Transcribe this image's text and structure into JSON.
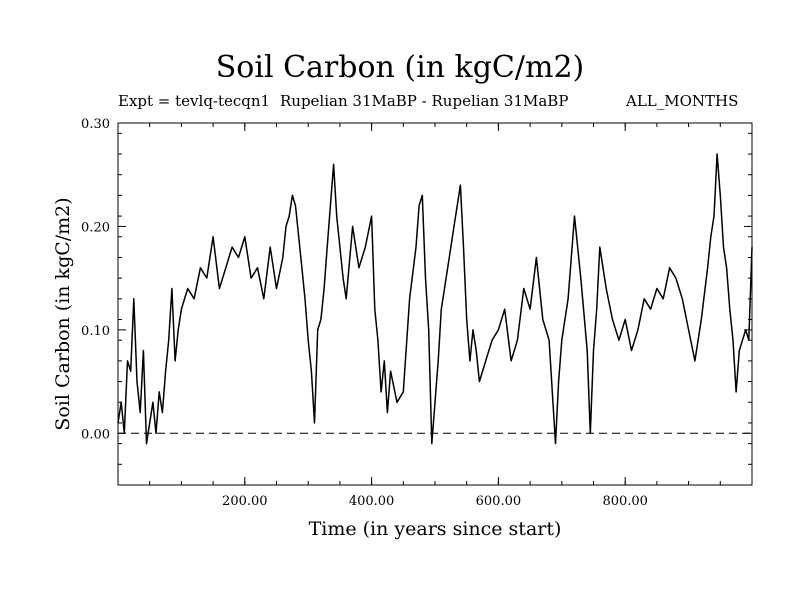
{
  "title": "Soil Carbon (in kgC/m2)",
  "expt_label": "Expt = tevlq-tecqn1",
  "period_label": "Rupelian  31MaBP - Rupelian  31MaBP",
  "months_label": "ALL_MONTHS",
  "chart_data": {
    "type": "line",
    "title": "Soil Carbon (in kgC/m2)",
    "xlabel": "Time (in years since start)",
    "ylabel": "Soil Carbon (in kgC/m2)",
    "xlim": [
      0,
      1000
    ],
    "ylim": [
      -0.05,
      0.3
    ],
    "x_ticks": [
      200,
      400,
      600,
      800
    ],
    "x_tick_labels": [
      "200.00",
      "400.00",
      "600.00",
      "800.00"
    ],
    "y_ticks": [
      0.0,
      0.1,
      0.2,
      0.3
    ],
    "y_tick_labels": [
      "0.00",
      "0.10",
      "0.20",
      "0.30"
    ],
    "reference_line": {
      "y": 0.0,
      "style": "dashed"
    },
    "series": [
      {
        "name": "Soil Carbon",
        "x": [
          0,
          5,
          10,
          15,
          20,
          25,
          30,
          35,
          40,
          45,
          50,
          55,
          60,
          65,
          70,
          75,
          80,
          85,
          90,
          95,
          100,
          110,
          120,
          130,
          140,
          150,
          160,
          170,
          180,
          190,
          200,
          210,
          220,
          230,
          240,
          250,
          260,
          265,
          270,
          275,
          280,
          285,
          290,
          295,
          300,
          305,
          310,
          315,
          320,
          325,
          330,
          335,
          340,
          345,
          350,
          355,
          360,
          370,
          380,
          390,
          400,
          405,
          410,
          415,
          420,
          425,
          430,
          440,
          450,
          460,
          470,
          475,
          480,
          485,
          490,
          495,
          500,
          505,
          510,
          520,
          530,
          540,
          545,
          550,
          555,
          560,
          565,
          570,
          580,
          590,
          600,
          610,
          620,
          630,
          640,
          650,
          660,
          670,
          680,
          685,
          690,
          695,
          700,
          710,
          720,
          730,
          740,
          745,
          750,
          755,
          760,
          770,
          780,
          790,
          800,
          810,
          820,
          830,
          840,
          850,
          860,
          870,
          880,
          890,
          900,
          910,
          920,
          930,
          935,
          940,
          945,
          950,
          955,
          960,
          965,
          970,
          975,
          980,
          985,
          990,
          995,
          1000
        ],
        "values": [
          0.01,
          0.03,
          0.0,
          0.07,
          0.06,
          0.13,
          0.05,
          0.02,
          0.08,
          -0.01,
          0.01,
          0.03,
          0.0,
          0.04,
          0.02,
          0.06,
          0.09,
          0.14,
          0.07,
          0.1,
          0.12,
          0.14,
          0.13,
          0.16,
          0.15,
          0.19,
          0.14,
          0.16,
          0.18,
          0.17,
          0.19,
          0.15,
          0.16,
          0.13,
          0.18,
          0.14,
          0.17,
          0.2,
          0.21,
          0.23,
          0.22,
          0.19,
          0.16,
          0.13,
          0.09,
          0.06,
          0.01,
          0.1,
          0.11,
          0.14,
          0.18,
          0.22,
          0.26,
          0.21,
          0.18,
          0.15,
          0.13,
          0.2,
          0.16,
          0.18,
          0.21,
          0.12,
          0.09,
          0.04,
          0.07,
          0.02,
          0.06,
          0.03,
          0.04,
          0.13,
          0.18,
          0.22,
          0.23,
          0.15,
          0.1,
          -0.01,
          0.03,
          0.07,
          0.12,
          0.16,
          0.2,
          0.24,
          0.18,
          0.11,
          0.07,
          0.1,
          0.08,
          0.05,
          0.07,
          0.09,
          0.1,
          0.12,
          0.07,
          0.09,
          0.14,
          0.12,
          0.17,
          0.11,
          0.09,
          0.04,
          -0.01,
          0.05,
          0.09,
          0.13,
          0.21,
          0.15,
          0.08,
          0.0,
          0.08,
          0.12,
          0.18,
          0.14,
          0.11,
          0.09,
          0.11,
          0.08,
          0.1,
          0.13,
          0.12,
          0.14,
          0.13,
          0.16,
          0.15,
          0.13,
          0.1,
          0.07,
          0.11,
          0.16,
          0.19,
          0.21,
          0.27,
          0.23,
          0.18,
          0.16,
          0.12,
          0.09,
          0.04,
          0.08,
          0.09,
          0.1,
          0.09,
          0.18
        ]
      }
    ]
  }
}
